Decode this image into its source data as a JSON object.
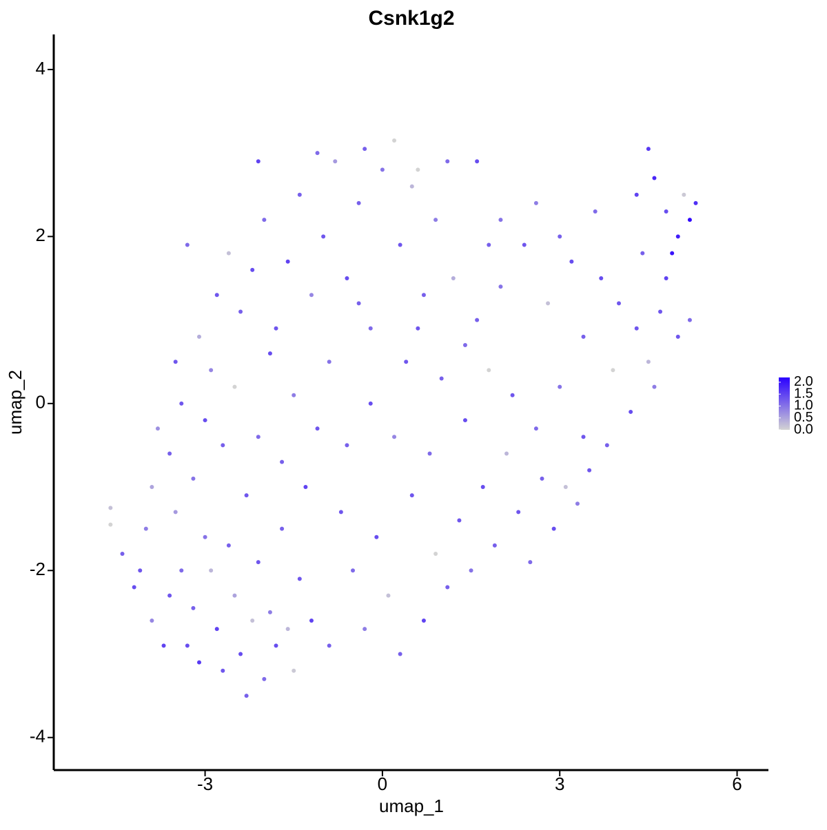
{
  "chart_data": {
    "type": "scatter",
    "title": "Csnk1g2",
    "x_label": "umap_1",
    "y_label": "umap_2",
    "xlim": [
      -5.56,
      6.53
    ],
    "ylim": [
      -4.39,
      4.42
    ],
    "xticks": [
      -3,
      0,
      3,
      6
    ],
    "yticks": [
      -4,
      -2,
      0,
      2,
      4
    ],
    "colors": [
      "#d3d3d3",
      "#2a00ff"
    ],
    "colorlim": [
      0,
      2.2
    ],
    "colorbar_ticks": [
      {
        "value": 0,
        "label": "0.0"
      },
      {
        "value": 0.5,
        "label": "0.5"
      },
      {
        "value": 1,
        "label": "1.0"
      },
      {
        "value": 1.5,
        "label": "1.5"
      },
      {
        "value": 2,
        "label": "2.0"
      }
    ],
    "x": [
      -4.6,
      -4.6,
      -4.4,
      -4.2,
      -4.0,
      -3.9,
      -3.7,
      -3.6,
      -3.5,
      -3.4,
      -3.3,
      -3.2,
      -3.1,
      -3.0,
      -2.9,
      -2.8,
      -2.7,
      -2.6,
      -2.5,
      -2.4,
      -2.3,
      -2.2,
      -2.1,
      -2.0,
      -1.9,
      -1.8,
      -1.7,
      -1.5,
      -1.4,
      -1.2,
      -3.6,
      -3.8,
      -3.4,
      -3.2,
      -3.0,
      -2.9,
      -2.7,
      -2.5,
      -2.3,
      -2.1,
      -1.9,
      -1.7,
      -1.5,
      -1.3,
      -1.1,
      -0.9,
      -3.1,
      -2.8,
      -2.6,
      -2.4,
      -2.2,
      -2.0,
      -1.8,
      -1.6,
      -1.4,
      -1.2,
      -1.0,
      -0.8,
      -0.6,
      -0.4,
      -0.2,
      0.0,
      0.2,
      0.3,
      0.5,
      0.7,
      0.9,
      1.1,
      1.2,
      -2.1,
      -1.1,
      -0.3,
      0.6,
      1.6,
      -0.7,
      -0.5,
      -0.3,
      -0.1,
      0.1,
      0.3,
      0.5,
      0.7,
      0.9,
      1.1,
      1.3,
      1.5,
      1.7,
      1.9,
      2.1,
      2.3,
      2.5,
      2.7,
      2.9,
      3.1,
      3.3,
      3.5,
      -0.6,
      -0.2,
      0.2,
      0.4,
      0.8,
      1.0,
      1.4,
      1.8,
      2.2,
      2.6,
      3.0,
      3.4,
      3.8,
      4.2,
      4.6,
      5.0,
      4.5,
      1.6,
      2.0,
      2.4,
      2.8,
      3.2,
      3.6,
      4.0,
      4.4,
      4.8,
      5.2,
      3.4,
      3.9,
      4.3,
      2.6,
      3.0,
      4.5,
      4.6,
      4.8,
      5.0,
      5.2,
      5.3,
      4.9,
      4.3,
      5.1,
      4.7,
      1.8,
      1.4,
      0.6,
      -0.4,
      -3.3,
      -3.5,
      -3.9,
      -4.1,
      -1.6,
      -0.9,
      2.0,
      3.7
    ],
    "y": [
      -1.25,
      -1.45,
      -1.8,
      -2.2,
      -1.5,
      -2.6,
      -2.9,
      -2.3,
      -1.3,
      -2.0,
      -2.9,
      -2.45,
      -3.1,
      -1.6,
      -2.0,
      -2.7,
      -3.2,
      -1.7,
      -2.3,
      -3.0,
      -3.5,
      -2.6,
      -1.9,
      -3.3,
      -2.5,
      -2.9,
      -1.5,
      -3.2,
      -2.1,
      -2.6,
      -0.6,
      -0.3,
      0.0,
      -0.9,
      -0.2,
      0.4,
      -0.5,
      0.2,
      -1.1,
      -0.4,
      0.6,
      -0.7,
      0.1,
      -1.0,
      -0.3,
      0.5,
      0.8,
      1.3,
      1.8,
      1.1,
      1.6,
      2.2,
      0.9,
      1.7,
      2.5,
      1.3,
      2.0,
      2.9,
      1.5,
      2.4,
      0.9,
      2.8,
      3.15,
      1.9,
      2.6,
      1.3,
      2.2,
      2.9,
      1.5,
      2.9,
      3.0,
      3.05,
      2.8,
      2.9,
      -1.3,
      -2.0,
      -2.7,
      -1.6,
      -2.3,
      -3.0,
      -1.1,
      -2.6,
      -1.8,
      -2.2,
      -1.4,
      -2.0,
      -1.0,
      -1.7,
      -0.6,
      -1.3,
      -1.9,
      -0.9,
      -1.5,
      -1.0,
      -1.2,
      -0.8,
      -0.5,
      0.0,
      -0.4,
      0.5,
      -0.6,
      0.3,
      -0.2,
      0.4,
      0.1,
      -0.3,
      0.2,
      -0.4,
      -0.5,
      -0.1,
      0.2,
      0.8,
      0.5,
      1.0,
      1.4,
      1.9,
      1.2,
      1.7,
      2.3,
      1.2,
      1.8,
      1.5,
      1.0,
      0.8,
      0.4,
      0.9,
      2.4,
      2.0,
      3.05,
      2.7,
      2.3,
      2.0,
      2.2,
      2.4,
      1.8,
      2.5,
      2.5,
      1.1,
      1.9,
      0.7,
      0.9,
      1.2,
      1.9,
      0.5,
      -1.0,
      -2.0,
      -2.7,
      -2.9,
      2.2,
      1.5
    ],
    "values": [
      0.2,
      0,
      1.2,
      1.4,
      0.9,
      0.8,
      1.5,
      1.3,
      0.6,
      1.1,
      1.4,
      1.2,
      1.6,
      1.0,
      0.3,
      1.5,
      1.3,
      1.2,
      0.5,
      1.4,
      1.2,
      0.2,
      1.3,
      1.1,
      0.9,
      1.4,
      1.2,
      0.1,
      1.3,
      1.5,
      1.2,
      0.7,
      1.3,
      1.0,
      1.4,
      0.8,
      1.2,
      0,
      1.3,
      1.1,
      1.4,
      1.2,
      0.9,
      1.5,
      1.3,
      1.0,
      0.4,
      1.3,
      0.2,
      1.2,
      1.4,
      1.1,
      1.3,
      1.5,
      1.2,
      0.8,
      1.3,
      0.6,
      1.4,
      1.2,
      1.1,
      1.0,
      0,
      1.3,
      0.3,
      1.2,
      0.9,
      1.1,
      0.4,
      1.5,
      1.1,
      1.2,
      0,
      1.4,
      1.3,
      1.1,
      0.9,
      1.4,
      0.2,
      1.2,
      1.3,
      1.5,
      0,
      1.2,
      1.3,
      1.0,
      1.4,
      1.2,
      0.3,
      1.3,
      1.1,
      1.2,
      1.4,
      0.2,
      0.9,
      1.3,
      1.2,
      1.4,
      0.8,
      1.3,
      1.1,
      1.2,
      1.4,
      0,
      1.3,
      1.1,
      1.0,
      1.3,
      1.2,
      1.4,
      0.9,
      1.3,
      0.3,
      1.2,
      1.0,
      1.3,
      0.2,
      1.4,
      1.1,
      1.3,
      1.2,
      1.5,
      1.1,
      1.2,
      0,
      1.3,
      0.9,
      1.2,
      1.6,
      1.8,
      1.4,
      1.9,
      2.1,
      1.7,
      2.0,
      1.5,
      0.1,
      1.3,
      1.2,
      1.1,
      1.3,
      1.2,
      1.1,
      1.3,
      0.5,
      1.3,
      0.3,
      1.2,
      1.0,
      1.4
    ]
  }
}
